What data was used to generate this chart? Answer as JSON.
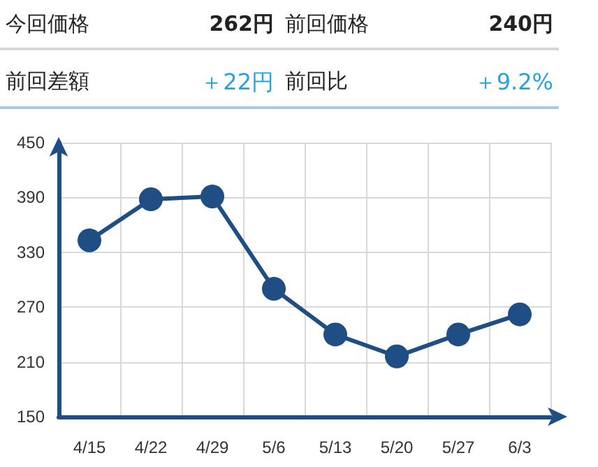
{
  "chart_data": {
    "type": "line",
    "annotations": [
      "今回価格",
      "262円",
      "前回価格",
      "240円",
      "前回差額",
      "＋22円",
      "前回比",
      "＋9.2%"
    ],
    "categories": [
      "4/15",
      "4/22",
      "4/29",
      "5/6",
      "5/13",
      "5/20",
      "5/27",
      "6/3"
    ],
    "series": [
      {
        "color": "#1f4e85",
        "values": [
          343,
          388,
          391,
          290,
          240,
          216,
          240,
          262
        ]
      }
    ],
    "ylim": [
      150,
      450
    ],
    "yticks": [
      150,
      210,
      270,
      330,
      390,
      450
    ],
    "grid": true,
    "marker": "circle",
    "line_style": "solid"
  }
}
